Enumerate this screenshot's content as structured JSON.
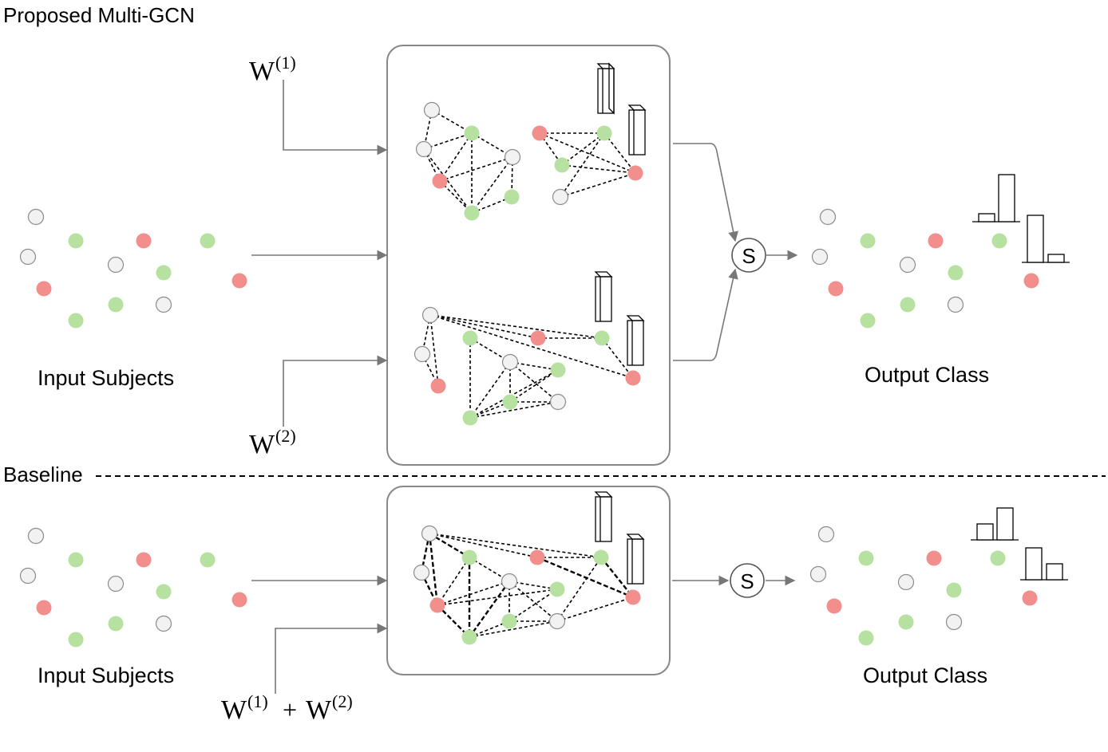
{
  "labels": {
    "proposed_title": "Proposed Multi-GCN",
    "baseline_title": "Baseline",
    "input_top": "Input Subjects",
    "output_top": "Output Class",
    "input_bottom": "Input Subjects",
    "output_bottom": "Output Class",
    "s_top": "S",
    "s_bottom": "S",
    "w1_base": "W",
    "w1_sup": "(1)",
    "w2_base": "W",
    "w2_sup": "(2)",
    "wsum_a_base": "W",
    "wsum_a_sup": "(1)",
    "wsum_plus": "+",
    "wsum_b_base": "W",
    "wsum_b_sup": "(2)"
  },
  "colors": {
    "gray_node": "#f2f2f2",
    "green_node": "#b7e1a1",
    "red_node": "#f28e8c",
    "node_stroke": "#8c8c8c",
    "arrow": "#777777",
    "box_stroke": "#888888"
  }
}
